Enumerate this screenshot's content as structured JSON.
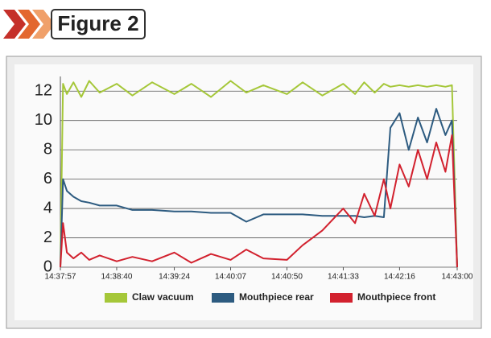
{
  "header": {
    "title": "Figure 2"
  },
  "chart_data": {
    "type": "line",
    "x": [
      "14:37:57",
      "14:37:59",
      "14:38:02",
      "14:38:07",
      "14:38:13",
      "14:38:19",
      "14:38:27",
      "14:38:40",
      "14:38:52",
      "14:39:07",
      "14:39:24",
      "14:39:37",
      "14:39:52",
      "14:40:07",
      "14:40:19",
      "14:40:32",
      "14:40:50",
      "14:41:02",
      "14:41:17",
      "14:41:33",
      "14:41:42",
      "14:41:49",
      "14:41:57",
      "14:42:04",
      "14:42:09",
      "14:42:16",
      "14:42:23",
      "14:42:30",
      "14:42:37",
      "14:42:44",
      "14:42:51",
      "14:42:56",
      "14:43:00"
    ],
    "xticks": [
      "14:37:57",
      "14:38:40",
      "14:39:24",
      "14:40:07",
      "14:40:50",
      "14:41:33",
      "14:42:16",
      "14:43:00"
    ],
    "ylim": [
      0,
      13
    ],
    "yticks": [
      0,
      2,
      4,
      6,
      8,
      10,
      12
    ],
    "grid": true,
    "series": [
      {
        "name": "Claw vacuum",
        "color": "#a5c739",
        "values": [
          0,
          12.5,
          11.8,
          12.6,
          11.6,
          12.7,
          11.9,
          12.5,
          11.7,
          12.6,
          11.8,
          12.5,
          11.6,
          12.7,
          11.9,
          12.4,
          11.8,
          12.6,
          11.7,
          12.5,
          11.8,
          12.6,
          11.9,
          12.5,
          12.3,
          12.4,
          12.3,
          12.4,
          12.3,
          12.4,
          12.3,
          12.4,
          0
        ]
      },
      {
        "name": "Mouthpiece rear",
        "color": "#2d5b80",
        "values": [
          0,
          6,
          5.2,
          4.8,
          4.5,
          4.4,
          4.2,
          4.2,
          3.9,
          3.9,
          3.8,
          3.8,
          3.7,
          3.7,
          3.1,
          3.6,
          3.6,
          3.6,
          3.5,
          3.5,
          3.5,
          3.4,
          3.5,
          3.4,
          9.5,
          10.5,
          8,
          10.2,
          8.5,
          10.8,
          9,
          10,
          0
        ]
      },
      {
        "name": "Mouthpiece front",
        "color": "#d2212e",
        "values": [
          0,
          3,
          1,
          0.6,
          1,
          0.5,
          0.8,
          0.4,
          0.7,
          0.4,
          1,
          0.3,
          0.9,
          0.5,
          1.2,
          0.6,
          0.5,
          1.5,
          2.5,
          4,
          3,
          5,
          3.5,
          6,
          4,
          7,
          5.5,
          8,
          6,
          8.5,
          6.5,
          9,
          0
        ]
      }
    ]
  }
}
